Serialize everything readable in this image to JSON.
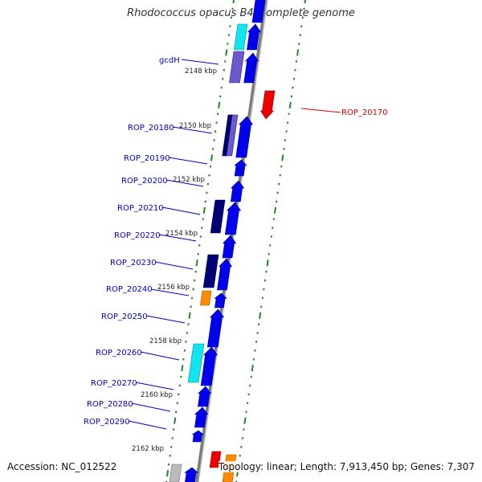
{
  "title": "Rhodococcus opacus B4, complete genome",
  "footer": {
    "accession": "Accession: NC_012522",
    "topology": "Topology: linear; Length: 7,913,450 bp; Genes: 7,307"
  },
  "colors": {
    "backbone": "#888888",
    "gene_blue": "#0000ee",
    "gene_dark_blue": "#000077",
    "gene_slate": "#6a5acd",
    "gene_cyan": "#11e6f0",
    "gene_orange": "#ff8c00",
    "gene_red": "#ee0000",
    "gene_grey": "#bbbbbb",
    "label_blue": "#0000cc",
    "label_red": "#dd0000",
    "tick_green": "#228822"
  },
  "ruler_labels": [
    {
      "id": "2148",
      "text": "2148 kbp"
    },
    {
      "id": "2150",
      "text": "2150 kbp"
    },
    {
      "id": "2152",
      "text": "2152 kbp"
    },
    {
      "id": "2154",
      "text": "2154 kbp"
    },
    {
      "id": "2156",
      "text": "2156 kbp"
    },
    {
      "id": "2158",
      "text": "2158 kbp"
    },
    {
      "id": "2160",
      "text": "2160 kbp"
    },
    {
      "id": "2162",
      "text": "2162 kbp"
    }
  ],
  "gene_labels": [
    {
      "name": "gcdH",
      "color": "label_blue"
    },
    {
      "name": "ROP_20170",
      "color": "label_red"
    },
    {
      "name": "ROP_20180",
      "color": "label_blue"
    },
    {
      "name": "ROP_20190",
      "color": "label_blue"
    },
    {
      "name": "ROP_20200",
      "color": "label_blue"
    },
    {
      "name": "ROP_20210",
      "color": "label_blue"
    },
    {
      "name": "ROP_20220",
      "color": "label_blue"
    },
    {
      "name": "ROP_20230",
      "color": "label_blue"
    },
    {
      "name": "ROP_20240",
      "color": "label_blue"
    },
    {
      "name": "ROP_20250",
      "color": "label_blue"
    },
    {
      "name": "ROP_20260",
      "color": "label_blue"
    },
    {
      "name": "ROP_20270",
      "color": "label_blue"
    },
    {
      "name": "ROP_20280",
      "color": "label_blue"
    },
    {
      "name": "ROP_20290",
      "color": "label_blue"
    }
  ]
}
